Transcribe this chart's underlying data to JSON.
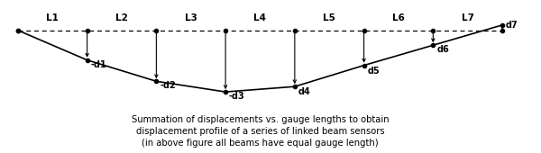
{
  "title_lines": [
    "Summation of displacements vs. gauge lengths to obtain",
    "displacement profile of a series of linked beam sensors",
    "(in above figure all beams have equal gauge length)"
  ],
  "x_positions": [
    0,
    1,
    2,
    3,
    4,
    5,
    6,
    7
  ],
  "y_profile": [
    0,
    -0.28,
    -0.48,
    -0.58,
    -0.53,
    -0.33,
    -0.14,
    0.05
  ],
  "labels_L": [
    "L1",
    "L2",
    "L3",
    "L4",
    "L5",
    "L6",
    "L7"
  ],
  "labels_d": [
    "-d1",
    "-d2",
    "-d3",
    "d4",
    "d5",
    "d6",
    "d7"
  ],
  "background_color": "#ffffff",
  "line_color": "#000000",
  "fontsize_title": 7.2,
  "fontsize_labels": 7.5
}
